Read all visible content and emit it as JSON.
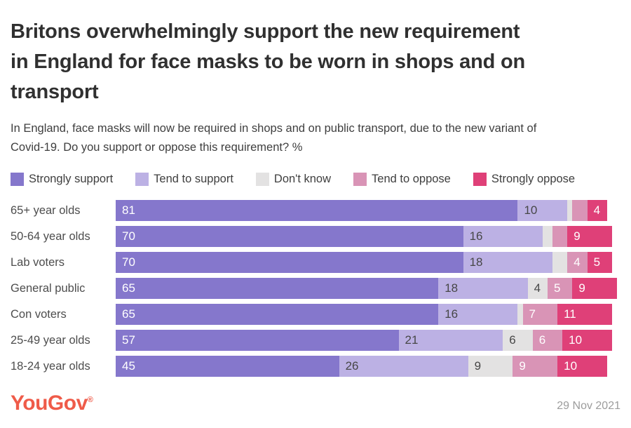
{
  "header": {
    "title_lines": [
      "Britons overwhelmingly support the new requirement",
      "in England for face masks to be worn in shops and on",
      "transport"
    ],
    "subtitle_lines": [
      "In England, face masks will now be required in shops and on public transport, due to the new variant of",
      "Covid-19. Do you support or oppose this requirement? %"
    ]
  },
  "chart_data": {
    "type": "bar",
    "orientation": "horizontal_stacked",
    "unit": "%",
    "legend_position": "top",
    "grid": false,
    "xlim": [
      0,
      101
    ],
    "value_labels_min": 4,
    "categories": [
      "65+ year olds",
      "50-64 year olds",
      "Lab voters",
      "General public",
      "Con voters",
      "25-49 year olds",
      "18-24 year olds"
    ],
    "series": [
      {
        "name": "Strongly support",
        "color": "#8577cc",
        "label_color": "#ffffff",
        "values": [
          81,
          70,
          70,
          65,
          65,
          57,
          45
        ]
      },
      {
        "name": "Tend to support",
        "color": "#bcb1e4",
        "label_color": "#474747",
        "values": [
          10,
          16,
          18,
          18,
          16,
          21,
          26
        ]
      },
      {
        "name": "Don't know",
        "color": "#e3e2e2",
        "label_color": "#474747",
        "values": [
          1,
          2,
          3,
          4,
          1,
          6,
          9
        ]
      },
      {
        "name": "Tend to oppose",
        "color": "#d994b6",
        "label_color": "#ffffff",
        "values": [
          3,
          3,
          4,
          5,
          7,
          6,
          9
        ]
      },
      {
        "name": "Strongly oppose",
        "color": "#df4078",
        "label_color": "#ffffff",
        "values": [
          4,
          9,
          5,
          9,
          11,
          10,
          10
        ]
      }
    ]
  },
  "footer": {
    "logo_text": "YouGov",
    "logo_mark": "®",
    "logo_color": "#ef5b49",
    "date": "29 Nov 2021"
  }
}
